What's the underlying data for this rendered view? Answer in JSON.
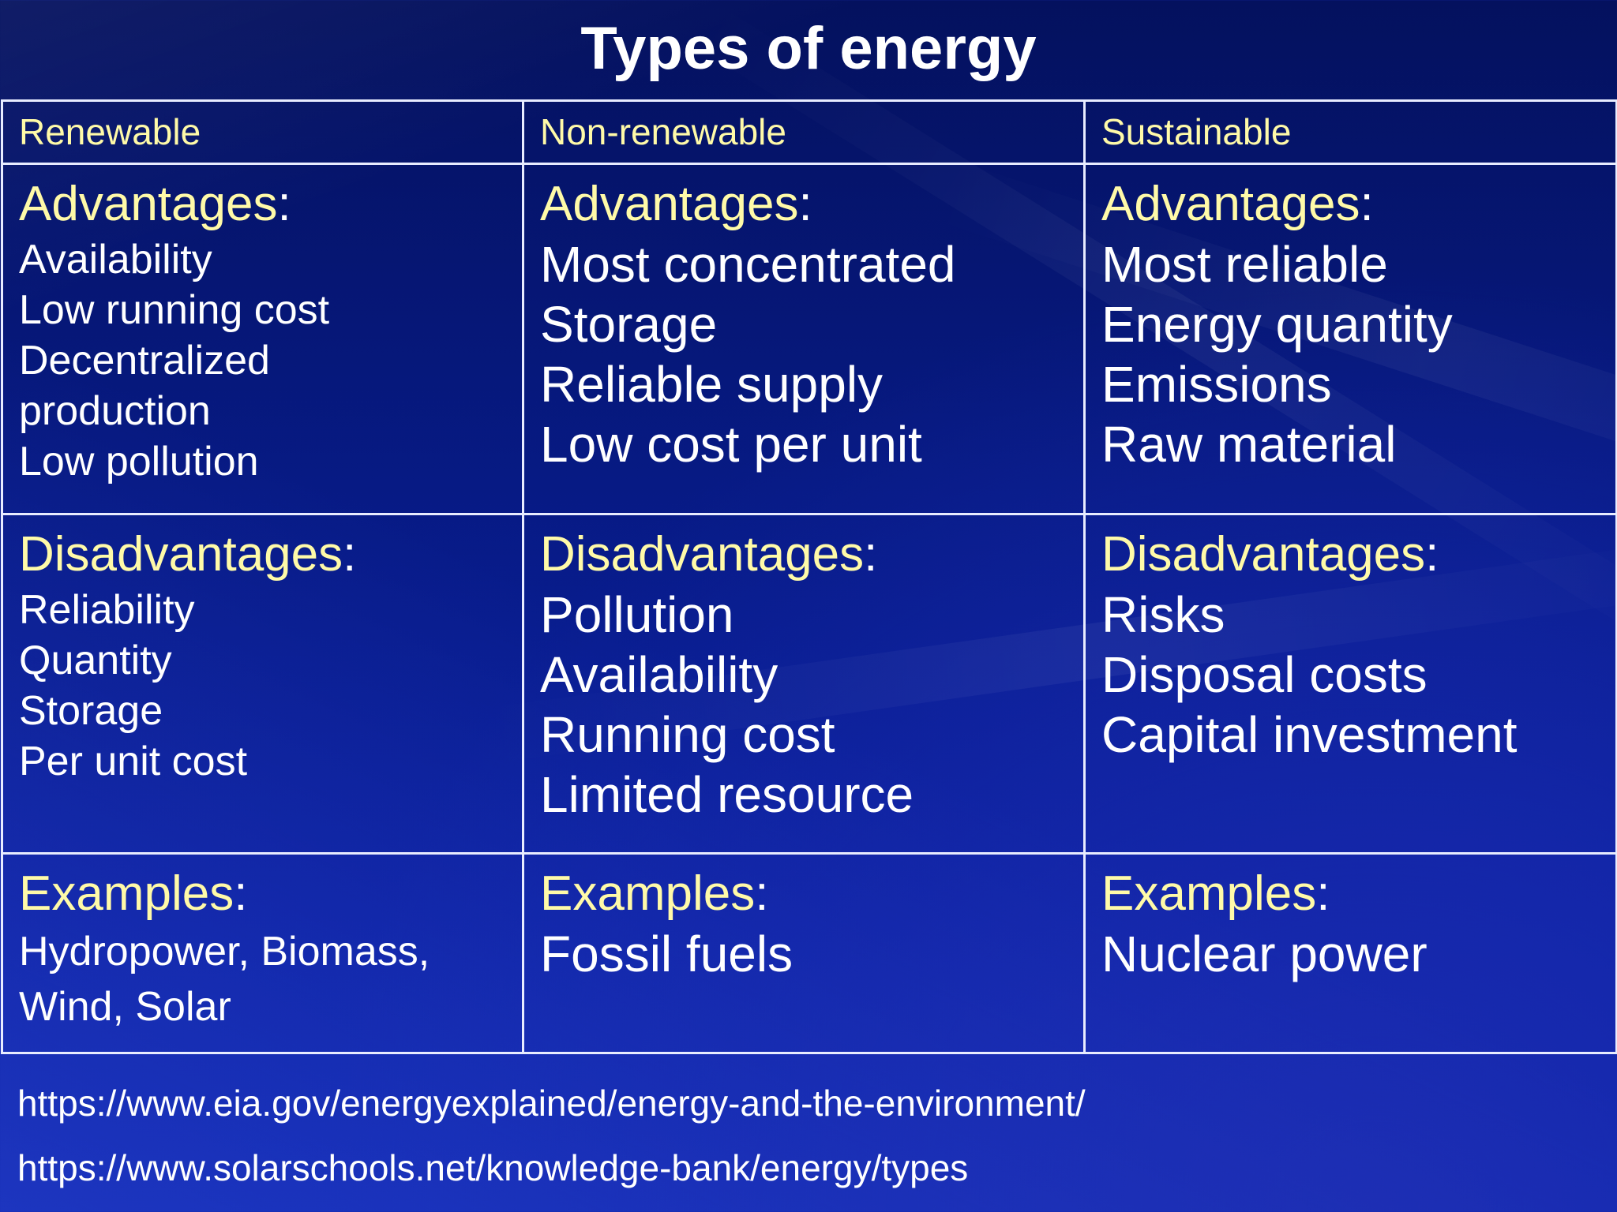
{
  "title": "Types of energy",
  "columns": [
    {
      "header": "Renewable",
      "advantages_label": "Advantages",
      "advantages": [
        "Availability",
        "Low running cost",
        "Decentralized",
        "production",
        "Low pollution"
      ],
      "disadvantages_label": "Disadvantages",
      "disadvantages": [
        "Reliability",
        "Quantity",
        "Storage",
        "Per unit cost"
      ],
      "examples_label": "Examples",
      "examples": [
        "Hydropower, Biomass,",
        "Wind, Solar"
      ]
    },
    {
      "header": "Non-renewable",
      "advantages_label": "Advantages",
      "advantages": [
        "Most concentrated",
        "Storage",
        "Reliable supply",
        "Low cost per unit"
      ],
      "disadvantages_label": "Disadvantages",
      "disadvantages": [
        "Pollution",
        "Availability",
        "Running cost",
        "Limited resource"
      ],
      "examples_label": "Examples",
      "examples": [
        "Fossil fuels"
      ]
    },
    {
      "header": "Sustainable",
      "advantages_label": "Advantages",
      "advantages": [
        "Most reliable",
        "Energy quantity",
        "Emissions",
        "Raw material"
      ],
      "disadvantages_label": "Disadvantages",
      "disadvantages": [
        "Risks",
        "Disposal costs",
        "Capital investment"
      ],
      "examples_label": "Examples",
      "examples": [
        "Nuclear power"
      ]
    }
  ],
  "colon": ":",
  "sources": [
    "https://www.eia.gov/energyexplained/energy-and-the-environment/",
    "https://www.solarschools.net/knowledge-bank/energy/types"
  ],
  "colors": {
    "background": "#071a84",
    "label": "#fffaa8",
    "text": "#ffffff",
    "border": "#e8ecff"
  }
}
